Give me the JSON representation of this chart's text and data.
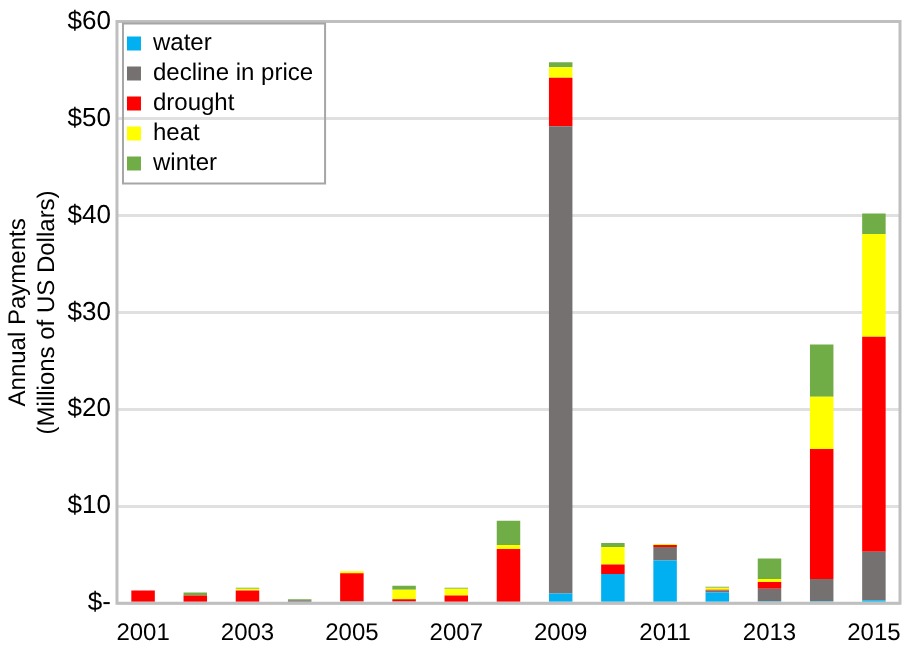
{
  "chart_data": {
    "type": "bar",
    "stacked": true,
    "ylabel": "Annual Payments\n(Millions of US Dollars)",
    "categories": [
      "2001",
      null,
      "2003",
      null,
      "2005",
      null,
      "2007",
      null,
      "2009",
      null,
      "2011",
      null,
      "2013",
      null,
      "2015"
    ],
    "series": [
      {
        "name": "water",
        "color": "#00b0f0",
        "values": [
          0,
          0,
          0,
          0,
          0,
          0,
          0,
          0,
          1.0,
          3.0,
          4.4,
          1.1,
          0.2,
          0.2,
          0.3
        ]
      },
      {
        "name": "decline in price",
        "color": "#767171",
        "values": [
          0,
          0,
          0,
          0.3,
          0.2,
          0.2,
          0,
          0,
          48.2,
          0,
          1.4,
          0.2,
          1.3,
          2.3,
          5.0
        ]
      },
      {
        "name": "drought",
        "color": "#ff0000",
        "values": [
          1.3,
          0.8,
          1.3,
          0,
          2.9,
          0.2,
          0.8,
          5.6,
          5.0,
          1.0,
          0.2,
          0.1,
          0.7,
          13.4,
          22.2
        ]
      },
      {
        "name": "heat",
        "color": "#ffff00",
        "values": [
          null,
          0,
          0.2,
          0,
          0.2,
          1.0,
          0.7,
          0.4,
          1.1,
          1.8,
          0.1,
          0.2,
          0.3,
          5.4,
          10.6
        ]
      },
      {
        "name": "winter",
        "color": "#70ad47",
        "values": [
          0,
          0.3,
          0.1,
          0.1,
          0,
          0.4,
          0.1,
          2.5,
          0.5,
          0.4,
          0,
          0.1,
          2.1,
          5.4,
          2.1
        ]
      }
    ],
    "ylim": [
      0,
      60
    ],
    "yticks": [
      {
        "value": 0,
        "label": "$-"
      },
      {
        "value": 10,
        "label": "$10"
      },
      {
        "value": 20,
        "label": "$20"
      },
      {
        "value": 30,
        "label": "$30"
      },
      {
        "value": 40,
        "label": "$40"
      },
      {
        "value": 50,
        "label": "$50"
      },
      {
        "value": 60,
        "label": "$60"
      }
    ],
    "grid": "y",
    "legend": "top left"
  }
}
